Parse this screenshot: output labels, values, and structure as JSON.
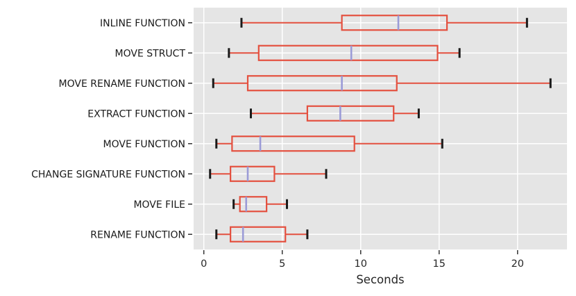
{
  "chart_data": {
    "type": "boxplot",
    "orientation": "horizontal",
    "title": "",
    "xlabel": "Seconds",
    "ylabel": "",
    "xlim": [
      -0.65,
      23.15
    ],
    "x_ticks": [
      0,
      5,
      10,
      15,
      20
    ],
    "grid": true,
    "categories": [
      "INLINE FUNCTION",
      "MOVE STRUCT",
      "MOVE RENAME FUNCTION",
      "EXTRACT FUNCTION",
      "MOVE FUNCTION",
      "CHANGE SIGNATURE FUNCTION",
      "MOVE FILE",
      "RENAME FUNCTION"
    ],
    "stats": [
      {
        "whislo": 2.4,
        "q1": 8.8,
        "med": 12.4,
        "q3": 15.5,
        "whishi": 20.6
      },
      {
        "whislo": 1.6,
        "q1": 3.5,
        "med": 9.4,
        "q3": 14.9,
        "whishi": 16.3
      },
      {
        "whislo": 0.6,
        "q1": 2.8,
        "med": 8.8,
        "q3": 12.3,
        "whishi": 22.1
      },
      {
        "whislo": 3.0,
        "q1": 6.6,
        "med": 8.7,
        "q3": 12.1,
        "whishi": 13.7
      },
      {
        "whislo": 0.8,
        "q1": 1.8,
        "med": 3.6,
        "q3": 9.6,
        "whishi": 15.2
      },
      {
        "whislo": 0.4,
        "q1": 1.7,
        "med": 2.8,
        "q3": 4.5,
        "whishi": 7.8
      },
      {
        "whislo": 1.9,
        "q1": 2.3,
        "med": 2.7,
        "q3": 4.0,
        "whishi": 5.3
      },
      {
        "whislo": 0.8,
        "q1": 1.7,
        "med": 2.5,
        "q3": 5.2,
        "whishi": 6.6
      }
    ],
    "colors": {
      "plot_background": "#e5e5e5",
      "gridline": "#ffffff",
      "box_edge": "#e4503f",
      "median": "#9b9bd7",
      "whisker": "#e4503f",
      "cap": "#1a1a1a",
      "tick_text": "#262626",
      "label_text": "#1a1a1a",
      "axis_tick_mark": "#333333"
    }
  }
}
